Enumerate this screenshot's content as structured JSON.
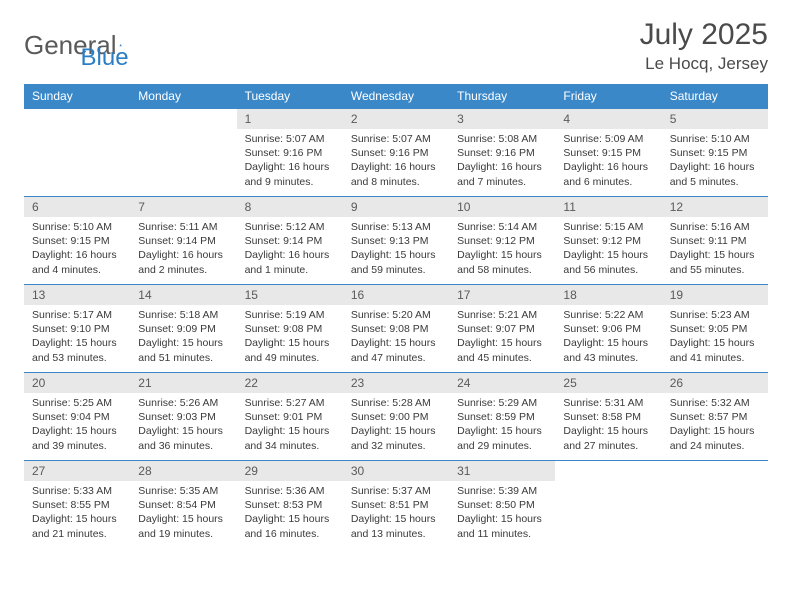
{
  "brand": {
    "word1": "General",
    "word2": "Blue"
  },
  "header": {
    "title": "July 2025",
    "location": "Le Hocq, Jersey"
  },
  "colors": {
    "header_bg": "#3b88c9",
    "header_text": "#ffffff",
    "daynum_bg": "#e8e8e8",
    "border": "#3b88c9",
    "logo_gray": "#5a5a5a",
    "logo_blue": "#2b7dc4",
    "text": "#3a3a3a"
  },
  "weekdays": [
    "Sunday",
    "Monday",
    "Tuesday",
    "Wednesday",
    "Thursday",
    "Friday",
    "Saturday"
  ],
  "weeks": [
    [
      {
        "n": "",
        "sr": "",
        "ss": "",
        "dl": ""
      },
      {
        "n": "",
        "sr": "",
        "ss": "",
        "dl": ""
      },
      {
        "n": "1",
        "sr": "Sunrise: 5:07 AM",
        "ss": "Sunset: 9:16 PM",
        "dl": "Daylight: 16 hours and 9 minutes."
      },
      {
        "n": "2",
        "sr": "Sunrise: 5:07 AM",
        "ss": "Sunset: 9:16 PM",
        "dl": "Daylight: 16 hours and 8 minutes."
      },
      {
        "n": "3",
        "sr": "Sunrise: 5:08 AM",
        "ss": "Sunset: 9:16 PM",
        "dl": "Daylight: 16 hours and 7 minutes."
      },
      {
        "n": "4",
        "sr": "Sunrise: 5:09 AM",
        "ss": "Sunset: 9:15 PM",
        "dl": "Daylight: 16 hours and 6 minutes."
      },
      {
        "n": "5",
        "sr": "Sunrise: 5:10 AM",
        "ss": "Sunset: 9:15 PM",
        "dl": "Daylight: 16 hours and 5 minutes."
      }
    ],
    [
      {
        "n": "6",
        "sr": "Sunrise: 5:10 AM",
        "ss": "Sunset: 9:15 PM",
        "dl": "Daylight: 16 hours and 4 minutes."
      },
      {
        "n": "7",
        "sr": "Sunrise: 5:11 AM",
        "ss": "Sunset: 9:14 PM",
        "dl": "Daylight: 16 hours and 2 minutes."
      },
      {
        "n": "8",
        "sr": "Sunrise: 5:12 AM",
        "ss": "Sunset: 9:14 PM",
        "dl": "Daylight: 16 hours and 1 minute."
      },
      {
        "n": "9",
        "sr": "Sunrise: 5:13 AM",
        "ss": "Sunset: 9:13 PM",
        "dl": "Daylight: 15 hours and 59 minutes."
      },
      {
        "n": "10",
        "sr": "Sunrise: 5:14 AM",
        "ss": "Sunset: 9:12 PM",
        "dl": "Daylight: 15 hours and 58 minutes."
      },
      {
        "n": "11",
        "sr": "Sunrise: 5:15 AM",
        "ss": "Sunset: 9:12 PM",
        "dl": "Daylight: 15 hours and 56 minutes."
      },
      {
        "n": "12",
        "sr": "Sunrise: 5:16 AM",
        "ss": "Sunset: 9:11 PM",
        "dl": "Daylight: 15 hours and 55 minutes."
      }
    ],
    [
      {
        "n": "13",
        "sr": "Sunrise: 5:17 AM",
        "ss": "Sunset: 9:10 PM",
        "dl": "Daylight: 15 hours and 53 minutes."
      },
      {
        "n": "14",
        "sr": "Sunrise: 5:18 AM",
        "ss": "Sunset: 9:09 PM",
        "dl": "Daylight: 15 hours and 51 minutes."
      },
      {
        "n": "15",
        "sr": "Sunrise: 5:19 AM",
        "ss": "Sunset: 9:08 PM",
        "dl": "Daylight: 15 hours and 49 minutes."
      },
      {
        "n": "16",
        "sr": "Sunrise: 5:20 AM",
        "ss": "Sunset: 9:08 PM",
        "dl": "Daylight: 15 hours and 47 minutes."
      },
      {
        "n": "17",
        "sr": "Sunrise: 5:21 AM",
        "ss": "Sunset: 9:07 PM",
        "dl": "Daylight: 15 hours and 45 minutes."
      },
      {
        "n": "18",
        "sr": "Sunrise: 5:22 AM",
        "ss": "Sunset: 9:06 PM",
        "dl": "Daylight: 15 hours and 43 minutes."
      },
      {
        "n": "19",
        "sr": "Sunrise: 5:23 AM",
        "ss": "Sunset: 9:05 PM",
        "dl": "Daylight: 15 hours and 41 minutes."
      }
    ],
    [
      {
        "n": "20",
        "sr": "Sunrise: 5:25 AM",
        "ss": "Sunset: 9:04 PM",
        "dl": "Daylight: 15 hours and 39 minutes."
      },
      {
        "n": "21",
        "sr": "Sunrise: 5:26 AM",
        "ss": "Sunset: 9:03 PM",
        "dl": "Daylight: 15 hours and 36 minutes."
      },
      {
        "n": "22",
        "sr": "Sunrise: 5:27 AM",
        "ss": "Sunset: 9:01 PM",
        "dl": "Daylight: 15 hours and 34 minutes."
      },
      {
        "n": "23",
        "sr": "Sunrise: 5:28 AM",
        "ss": "Sunset: 9:00 PM",
        "dl": "Daylight: 15 hours and 32 minutes."
      },
      {
        "n": "24",
        "sr": "Sunrise: 5:29 AM",
        "ss": "Sunset: 8:59 PM",
        "dl": "Daylight: 15 hours and 29 minutes."
      },
      {
        "n": "25",
        "sr": "Sunrise: 5:31 AM",
        "ss": "Sunset: 8:58 PM",
        "dl": "Daylight: 15 hours and 27 minutes."
      },
      {
        "n": "26",
        "sr": "Sunrise: 5:32 AM",
        "ss": "Sunset: 8:57 PM",
        "dl": "Daylight: 15 hours and 24 minutes."
      }
    ],
    [
      {
        "n": "27",
        "sr": "Sunrise: 5:33 AM",
        "ss": "Sunset: 8:55 PM",
        "dl": "Daylight: 15 hours and 21 minutes."
      },
      {
        "n": "28",
        "sr": "Sunrise: 5:35 AM",
        "ss": "Sunset: 8:54 PM",
        "dl": "Daylight: 15 hours and 19 minutes."
      },
      {
        "n": "29",
        "sr": "Sunrise: 5:36 AM",
        "ss": "Sunset: 8:53 PM",
        "dl": "Daylight: 15 hours and 16 minutes."
      },
      {
        "n": "30",
        "sr": "Sunrise: 5:37 AM",
        "ss": "Sunset: 8:51 PM",
        "dl": "Daylight: 15 hours and 13 minutes."
      },
      {
        "n": "31",
        "sr": "Sunrise: 5:39 AM",
        "ss": "Sunset: 8:50 PM",
        "dl": "Daylight: 15 hours and 11 minutes."
      },
      {
        "n": "",
        "sr": "",
        "ss": "",
        "dl": ""
      },
      {
        "n": "",
        "sr": "",
        "ss": "",
        "dl": ""
      }
    ]
  ]
}
